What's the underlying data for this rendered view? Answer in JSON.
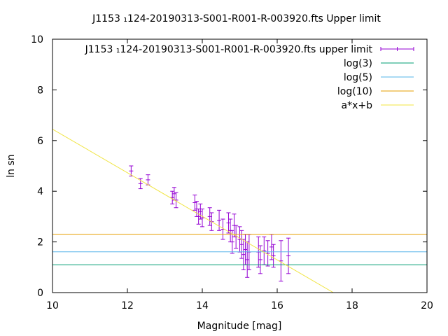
{
  "chart_data": {
    "type": "scatter",
    "title": "J1153 ₁124-20190313-S001-R001-R-003920.fts Upper limit",
    "xlabel": "Magnitude [mag]",
    "ylabel": "ln sn",
    "xlim": [
      10,
      20
    ],
    "ylim": [
      0,
      10
    ],
    "xticks": [
      "10",
      "12",
      "14",
      "16",
      "18",
      "20"
    ],
    "yticks": [
      "0",
      "2",
      "4",
      "6",
      "8",
      "10"
    ],
    "grid": false,
    "legend_position": "top-right",
    "series": [
      {
        "name": "J1153 ₁124-20190313-S001-R001-R-003920.fts upper limit",
        "kind": "errorbar",
        "color": "#9400d3",
        "points": [
          {
            "x": 12.1,
            "y": 4.8,
            "err": 0.2
          },
          {
            "x": 12.35,
            "y": 4.3,
            "err": 0.2
          },
          {
            "x": 12.55,
            "y": 4.45,
            "err": 0.2
          },
          {
            "x": 13.2,
            "y": 3.75,
            "err": 0.25
          },
          {
            "x": 13.25,
            "y": 3.9,
            "err": 0.25
          },
          {
            "x": 13.3,
            "y": 3.65,
            "err": 0.3
          },
          {
            "x": 13.8,
            "y": 3.55,
            "err": 0.3
          },
          {
            "x": 13.85,
            "y": 3.3,
            "err": 0.3
          },
          {
            "x": 13.9,
            "y": 3.0,
            "err": 0.3
          },
          {
            "x": 13.95,
            "y": 3.2,
            "err": 0.3
          },
          {
            "x": 14.0,
            "y": 2.95,
            "err": 0.35
          },
          {
            "x": 14.2,
            "y": 3.0,
            "err": 0.35
          },
          {
            "x": 14.25,
            "y": 2.8,
            "err": 0.35
          },
          {
            "x": 14.45,
            "y": 2.85,
            "err": 0.4
          },
          {
            "x": 14.55,
            "y": 2.5,
            "err": 0.4
          },
          {
            "x": 14.7,
            "y": 2.75,
            "err": 0.4
          },
          {
            "x": 14.75,
            "y": 2.45,
            "err": 0.45
          },
          {
            "x": 14.8,
            "y": 2.0,
            "err": 0.45
          },
          {
            "x": 14.85,
            "y": 2.65,
            "err": 0.45
          },
          {
            "x": 14.9,
            "y": 2.2,
            "err": 0.45
          },
          {
            "x": 15.0,
            "y": 2.1,
            "err": 0.5
          },
          {
            "x": 15.05,
            "y": 1.9,
            "err": 0.55
          },
          {
            "x": 15.1,
            "y": 1.5,
            "err": 0.6
          },
          {
            "x": 15.15,
            "y": 1.7,
            "err": 0.6
          },
          {
            "x": 15.2,
            "y": 1.3,
            "err": 0.7
          },
          {
            "x": 15.25,
            "y": 1.6,
            "err": 0.7
          },
          {
            "x": 15.5,
            "y": 1.6,
            "err": 0.6
          },
          {
            "x": 15.55,
            "y": 1.3,
            "err": 0.55
          },
          {
            "x": 15.65,
            "y": 1.65,
            "err": 0.55
          },
          {
            "x": 15.75,
            "y": 1.55,
            "err": 0.5
          },
          {
            "x": 15.85,
            "y": 1.8,
            "err": 0.5
          },
          {
            "x": 15.9,
            "y": 1.45,
            "err": 0.45
          },
          {
            "x": 16.1,
            "y": 1.25,
            "err": 0.8
          },
          {
            "x": 16.3,
            "y": 1.45,
            "err": 0.7
          }
        ]
      },
      {
        "name": "log(3)",
        "kind": "hline",
        "y": 1.0986,
        "color": "#009e73"
      },
      {
        "name": "log(5)",
        "kind": "hline",
        "y": 1.6094,
        "color": "#56b4e9"
      },
      {
        "name": "log(10)",
        "kind": "hline",
        "y": 2.3026,
        "color": "#e69f00"
      },
      {
        "name": "a*x+b",
        "kind": "fitline",
        "x": [
          10,
          17.5
        ],
        "y": [
          6.45,
          0
        ],
        "color": "#f0e442"
      }
    ]
  }
}
